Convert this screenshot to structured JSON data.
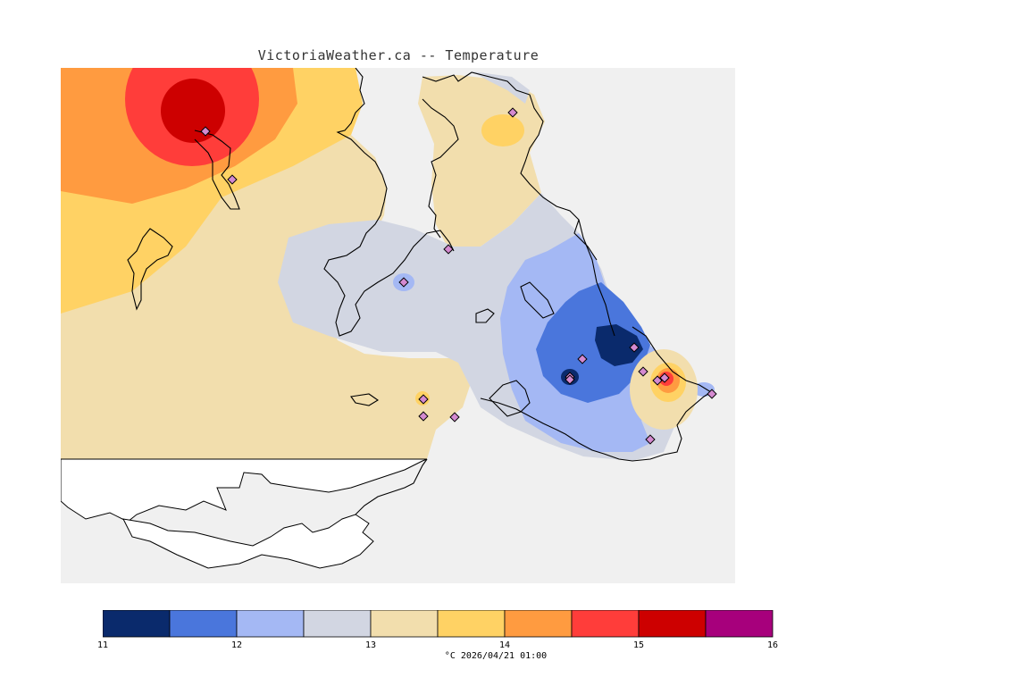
{
  "title": "VictoriaWeather.ca -- Temperature",
  "legend": {
    "colors": [
      "#0a2a6c",
      "#4a76dc",
      "#a4b8f4",
      "#d2d6e2",
      "#f2dead",
      "#ffd264",
      "#ff9b40",
      "#ff3d3a",
      "#cd0000",
      "#a7007c"
    ],
    "ticks": [
      "11",
      "12",
      "13",
      "14",
      "15",
      "16"
    ],
    "units_time": "°C  2026/04/21 01:00"
  },
  "colors": {
    "no_data": "#f0f0f0",
    "land_outside": "#ffffff",
    "coast": "#000000",
    "station_fill": "#d48ad0",
    "station_stroke": "#000000"
  },
  "stations": [
    {
      "temp": 15.2
    },
    {
      "temp": 13.6
    },
    {
      "temp": 13.7
    },
    {
      "temp": 13.6
    },
    {
      "temp": 12.3
    },
    {
      "temp": 13.8
    },
    {
      "temp": 13.3
    },
    {
      "temp": 13.6
    },
    {
      "temp": 11.3
    },
    {
      "temp": 11.8
    },
    {
      "temp": 11.2
    },
    {
      "temp": 11.4
    },
    {
      "temp": 15.3
    },
    {
      "temp": 15.1
    },
    {
      "temp": 12.2
    },
    {
      "temp": 12.3
    },
    {
      "temp": 12.4
    }
  ]
}
